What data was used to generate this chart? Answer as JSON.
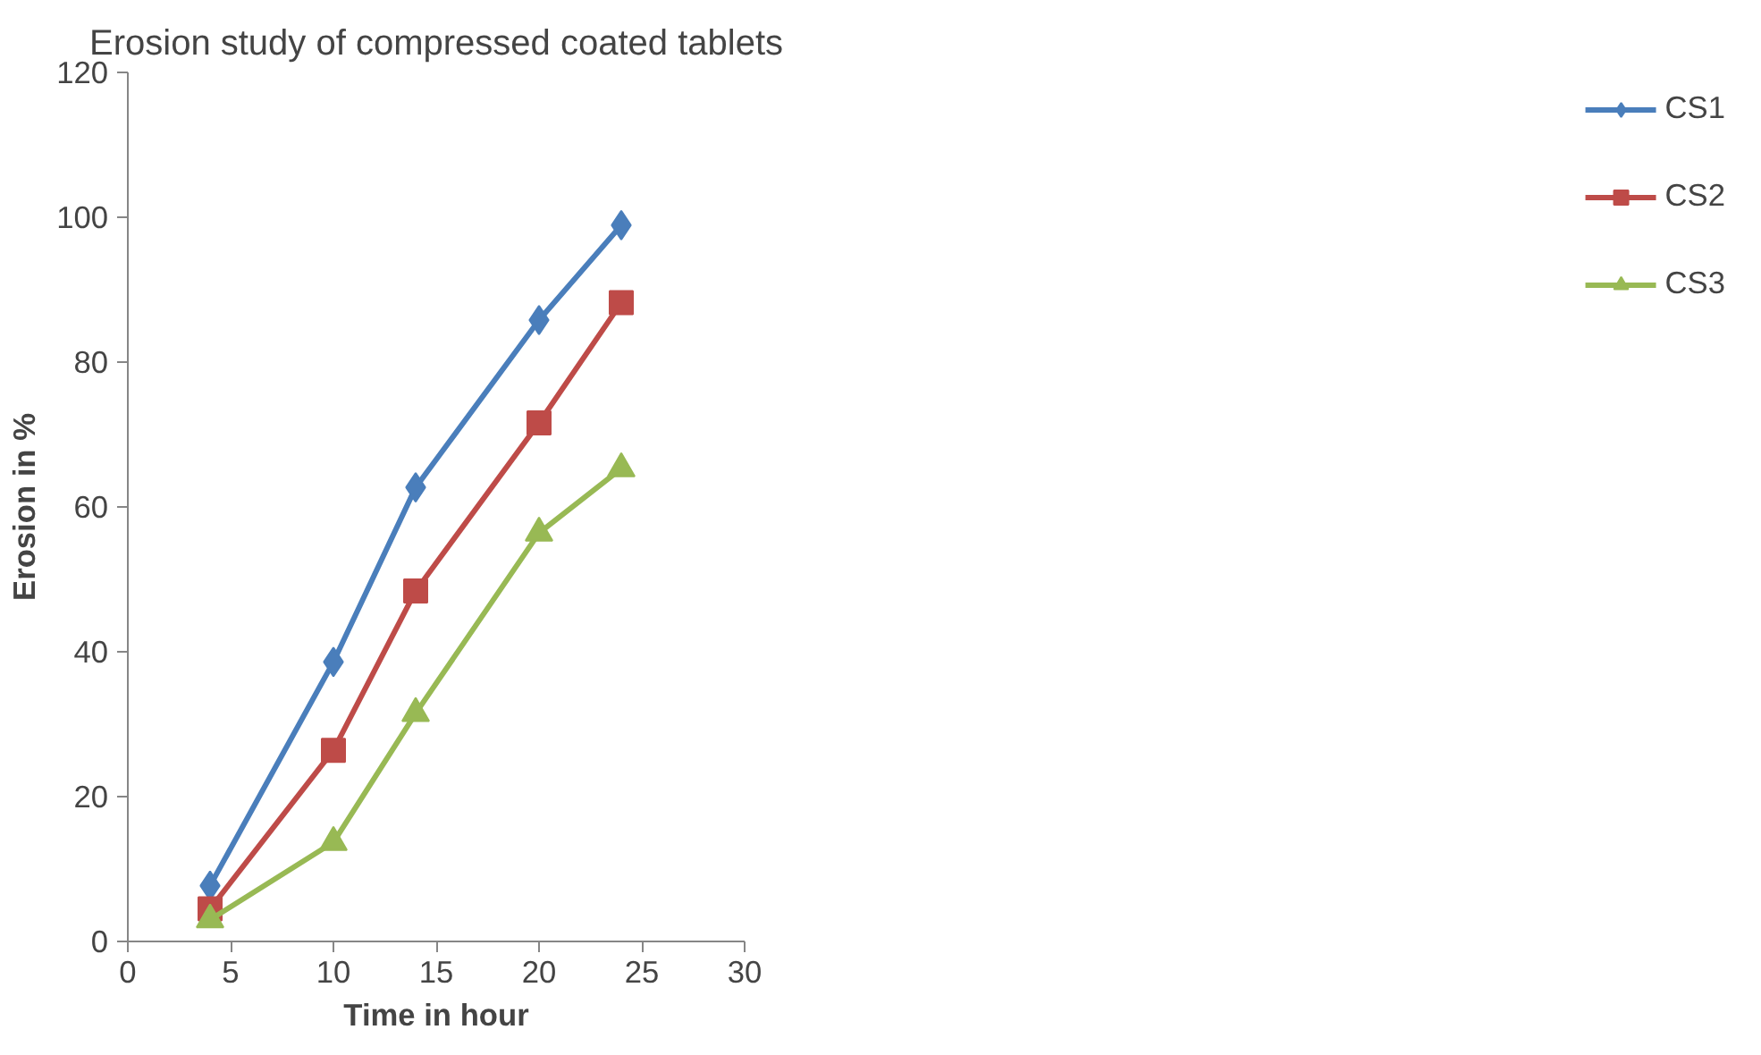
{
  "chart_data": {
    "type": "line",
    "title": "Erosion study of compressed coated tablets",
    "xlabel": "Time in hour",
    "ylabel": "Erosion in %",
    "x": [
      4,
      10,
      14,
      20,
      24
    ],
    "series": [
      {
        "name": "CS1",
        "color": "#4a7ebb",
        "marker": "diamond",
        "values": [
          7.7,
          38.6,
          62.7,
          85.8,
          98.9
        ]
      },
      {
        "name": "CS2",
        "color": "#be4b48",
        "marker": "square",
        "values": [
          4.5,
          26.4,
          48.4,
          71.6,
          88.2
        ]
      },
      {
        "name": "CS3",
        "color": "#98b954",
        "marker": "triangle",
        "values": [
          3,
          13.7,
          31.5,
          56.4,
          65.3
        ]
      }
    ],
    "xlim": [
      0,
      30
    ],
    "xticks": [
      0,
      5,
      10,
      15,
      20,
      25,
      30
    ],
    "ylim": [
      0,
      120
    ],
    "yticks": [
      0,
      20,
      40,
      60,
      80,
      100,
      120
    ],
    "grid": false,
    "legend": "right",
    "line_style": "solid"
  }
}
